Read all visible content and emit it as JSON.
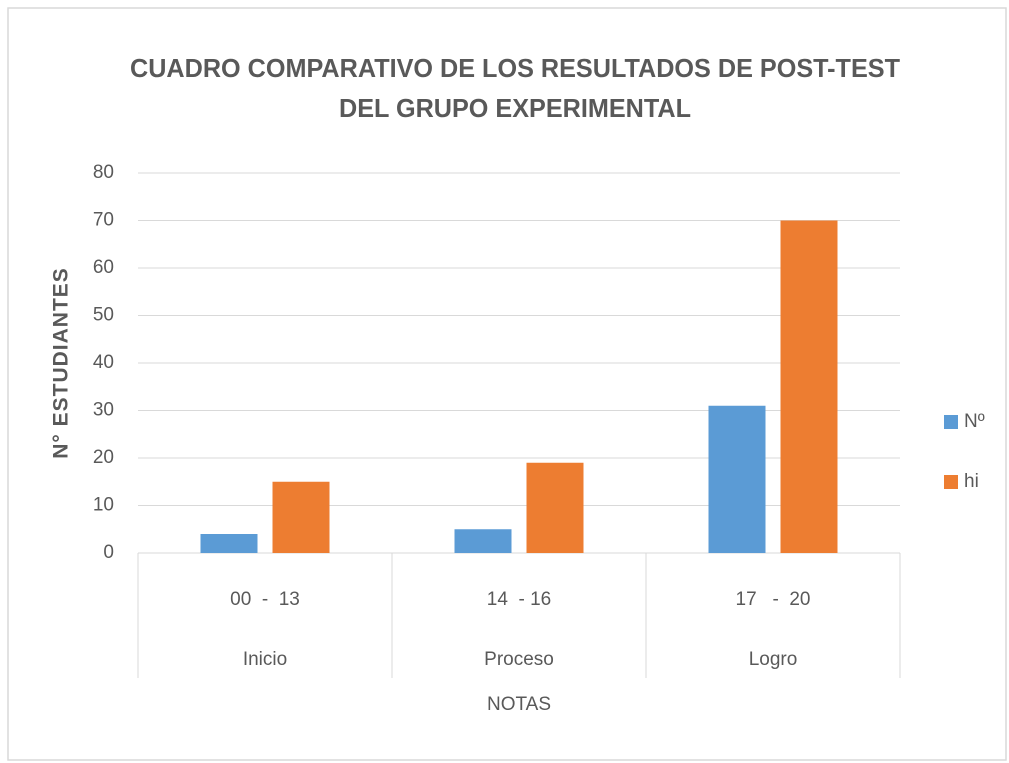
{
  "chart_data": {
    "type": "bar",
    "title": [
      "CUADRO COMPARATIVO DE LOS RESULTADOS DE POST-TEST",
      "DEL GRUPO EXPERIMENTAL"
    ],
    "y_label": "N° ESTUDIANTES",
    "x_label": "NOTAS",
    "categories": [
      "00  -  13",
      "14  - 16",
      "17   -  20"
    ],
    "category_groups": [
      "Inicio",
      "Proceso",
      "Logro"
    ],
    "series": [
      {
        "name": "Nº",
        "color": "#5b9bd5",
        "values": [
          4,
          5,
          31
        ]
      },
      {
        "name": "hi",
        "color": "#ed7d31",
        "values": [
          15,
          19,
          70
        ]
      }
    ],
    "ylim": [
      0,
      80
    ],
    "yticks": [
      0,
      10,
      20,
      30,
      40,
      50,
      60,
      70,
      80
    ],
    "grid": true,
    "legend": "right"
  }
}
